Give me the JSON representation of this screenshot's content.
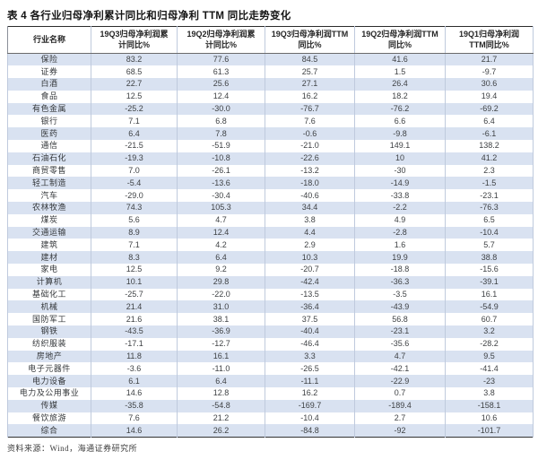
{
  "page": {
    "title": "表 4 各行业归母净利累计同比和归母净利 TTM 同比走势变化",
    "source_note": "资料来源：Wind，海通证券研究所"
  },
  "colors": {
    "stripe": "#d9e2f1",
    "grid": "#bfcadd",
    "rule_dark": "#2b2b2b",
    "text": "#3f4245"
  },
  "table": {
    "columns": [
      "行业名称",
      "19Q3归母净利润累\n计同比%",
      "19Q2归母净利润累\n计同比%",
      "19Q3归母净利润TTM\n同比%",
      "19Q2归母净利润TTM\n同比%",
      "19Q1归母净利润\nTTM同比%"
    ],
    "rows": [
      {
        "name": "保险",
        "values": [
          "83.2",
          "77.6",
          "84.5",
          "41.6",
          "21.7"
        ]
      },
      {
        "name": "证券",
        "values": [
          "68.5",
          "61.3",
          "25.7",
          "1.5",
          "-9.7"
        ]
      },
      {
        "name": "白酒",
        "values": [
          "22.7",
          "25.6",
          "27.1",
          "26.4",
          "30.6"
        ]
      },
      {
        "name": "食品",
        "values": [
          "12.5",
          "12.4",
          "16.2",
          "18.2",
          "19.4"
        ]
      },
      {
        "name": "有色金属",
        "values": [
          "-25.2",
          "-30.0",
          "-76.7",
          "-76.2",
          "-69.2"
        ]
      },
      {
        "name": "银行",
        "values": [
          "7.1",
          "6.8",
          "7.6",
          "6.6",
          "6.4"
        ]
      },
      {
        "name": "医药",
        "values": [
          "6.4",
          "7.8",
          "-0.6",
          "-9.8",
          "-6.1"
        ]
      },
      {
        "name": "通信",
        "values": [
          "-21.5",
          "-51.9",
          "-21.0",
          "149.1",
          "138.2"
        ]
      },
      {
        "name": "石油石化",
        "values": [
          "-19.3",
          "-10.8",
          "-22.6",
          "10",
          "41.2"
        ]
      },
      {
        "name": "商贸零售",
        "values": [
          "7.0",
          "-26.1",
          "-13.2",
          "-30",
          "2.3"
        ]
      },
      {
        "name": "轻工制造",
        "values": [
          "-5.4",
          "-13.6",
          "-18.0",
          "-14.9",
          "-1.5"
        ]
      },
      {
        "name": "汽车",
        "values": [
          "-29.0",
          "-30.4",
          "-40.6",
          "-33.8",
          "-23.1"
        ]
      },
      {
        "name": "农林牧渔",
        "values": [
          "74.3",
          "105.3",
          "34.4",
          "-2.2",
          "-76.3"
        ]
      },
      {
        "name": "煤炭",
        "values": [
          "5.6",
          "4.7",
          "3.8",
          "4.9",
          "6.5"
        ]
      },
      {
        "name": "交通运输",
        "values": [
          "8.9",
          "12.4",
          "4.4",
          "-2.8",
          "-10.4"
        ]
      },
      {
        "name": "建筑",
        "values": [
          "7.1",
          "4.2",
          "2.9",
          "1.6",
          "5.7"
        ]
      },
      {
        "name": "建材",
        "values": [
          "8.3",
          "6.4",
          "10.3",
          "19.9",
          "38.8"
        ]
      },
      {
        "name": "家电",
        "values": [
          "12.5",
          "9.2",
          "-20.7",
          "-18.8",
          "-15.6"
        ]
      },
      {
        "name": "计算机",
        "values": [
          "10.1",
          "29.8",
          "-42.4",
          "-36.3",
          "-39.1"
        ]
      },
      {
        "name": "基础化工",
        "values": [
          "-25.7",
          "-22.0",
          "-13.5",
          "-3.5",
          "16.1"
        ]
      },
      {
        "name": "机械",
        "values": [
          "21.4",
          "31.0",
          "-36.4",
          "-43.9",
          "-54.9"
        ]
      },
      {
        "name": "国防军工",
        "values": [
          "21.6",
          "38.1",
          "37.5",
          "56.8",
          "60.7"
        ]
      },
      {
        "name": "钢铁",
        "values": [
          "-43.5",
          "-36.9",
          "-40.4",
          "-23.1",
          "3.2"
        ]
      },
      {
        "name": "纺织服装",
        "values": [
          "-17.1",
          "-12.7",
          "-46.4",
          "-35.6",
          "-28.2"
        ]
      },
      {
        "name": "房地产",
        "values": [
          "11.8",
          "16.1",
          "3.3",
          "4.7",
          "9.5"
        ]
      },
      {
        "name": "电子元器件",
        "values": [
          "-3.6",
          "-11.0",
          "-26.5",
          "-42.1",
          "-41.4"
        ]
      },
      {
        "name": "电力设备",
        "values": [
          "6.1",
          "6.4",
          "-11.1",
          "-22.9",
          "-23"
        ]
      },
      {
        "name": "电力及公用事业",
        "values": [
          "14.6",
          "12.8",
          "16.2",
          "0.7",
          "3.8"
        ]
      },
      {
        "name": "传媒",
        "values": [
          "-35.8",
          "-54.8",
          "-169.7",
          "-189.4",
          "-158.1"
        ]
      },
      {
        "name": "餐饮旅游",
        "values": [
          "7.6",
          "21.2",
          "-10.4",
          "2.7",
          "10.6"
        ]
      },
      {
        "name": "综合",
        "values": [
          "14.6",
          "26.2",
          "-84.8",
          "-92",
          "-101.7"
        ]
      }
    ]
  }
}
